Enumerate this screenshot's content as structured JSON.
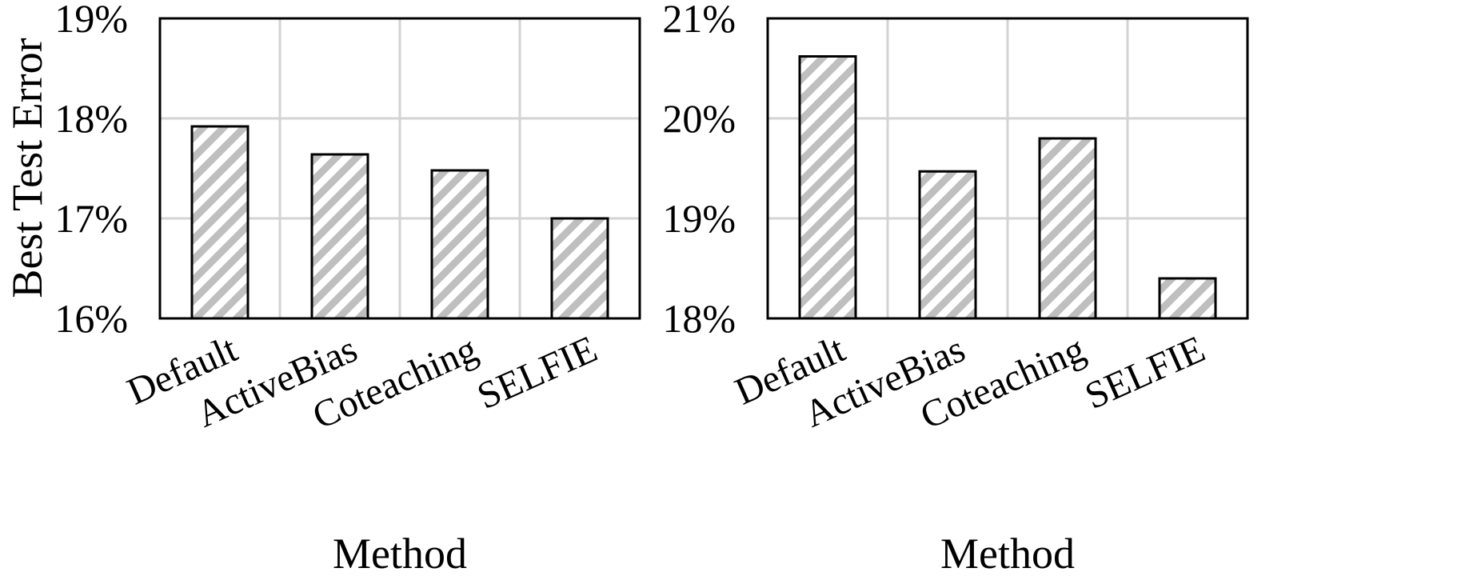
{
  "chart_data": [
    {
      "type": "bar",
      "categories": [
        "Default",
        "ActiveBias",
        "Coteaching",
        "SELFIE"
      ],
      "values": [
        17.92,
        17.64,
        17.48,
        17.0
      ],
      "ylim": [
        16,
        19
      ],
      "yticks": [
        16,
        17,
        18,
        19
      ],
      "ytick_labels": [
        "16%",
        "17%",
        "18%",
        "19%"
      ],
      "xlabel": "Method",
      "ylabel": "Best Test Error",
      "grid": true,
      "pattern": "diagonal-hatch-gray"
    },
    {
      "type": "bar",
      "categories": [
        "Default",
        "ActiveBias",
        "Coteaching",
        "SELFIE"
      ],
      "values": [
        20.62,
        19.47,
        19.8,
        18.4
      ],
      "ylim": [
        18,
        21
      ],
      "yticks": [
        18,
        19,
        20,
        21
      ],
      "ytick_labels": [
        "18%",
        "19%",
        "20%",
        "21%"
      ],
      "xlabel": "Method",
      "ylabel": "",
      "grid": true,
      "pattern": "diagonal-hatch-gray"
    }
  ],
  "colors": {
    "bar_fill": "#bfbfbf",
    "bar_stroke": "#000000",
    "grid": "#d3d3d3"
  }
}
